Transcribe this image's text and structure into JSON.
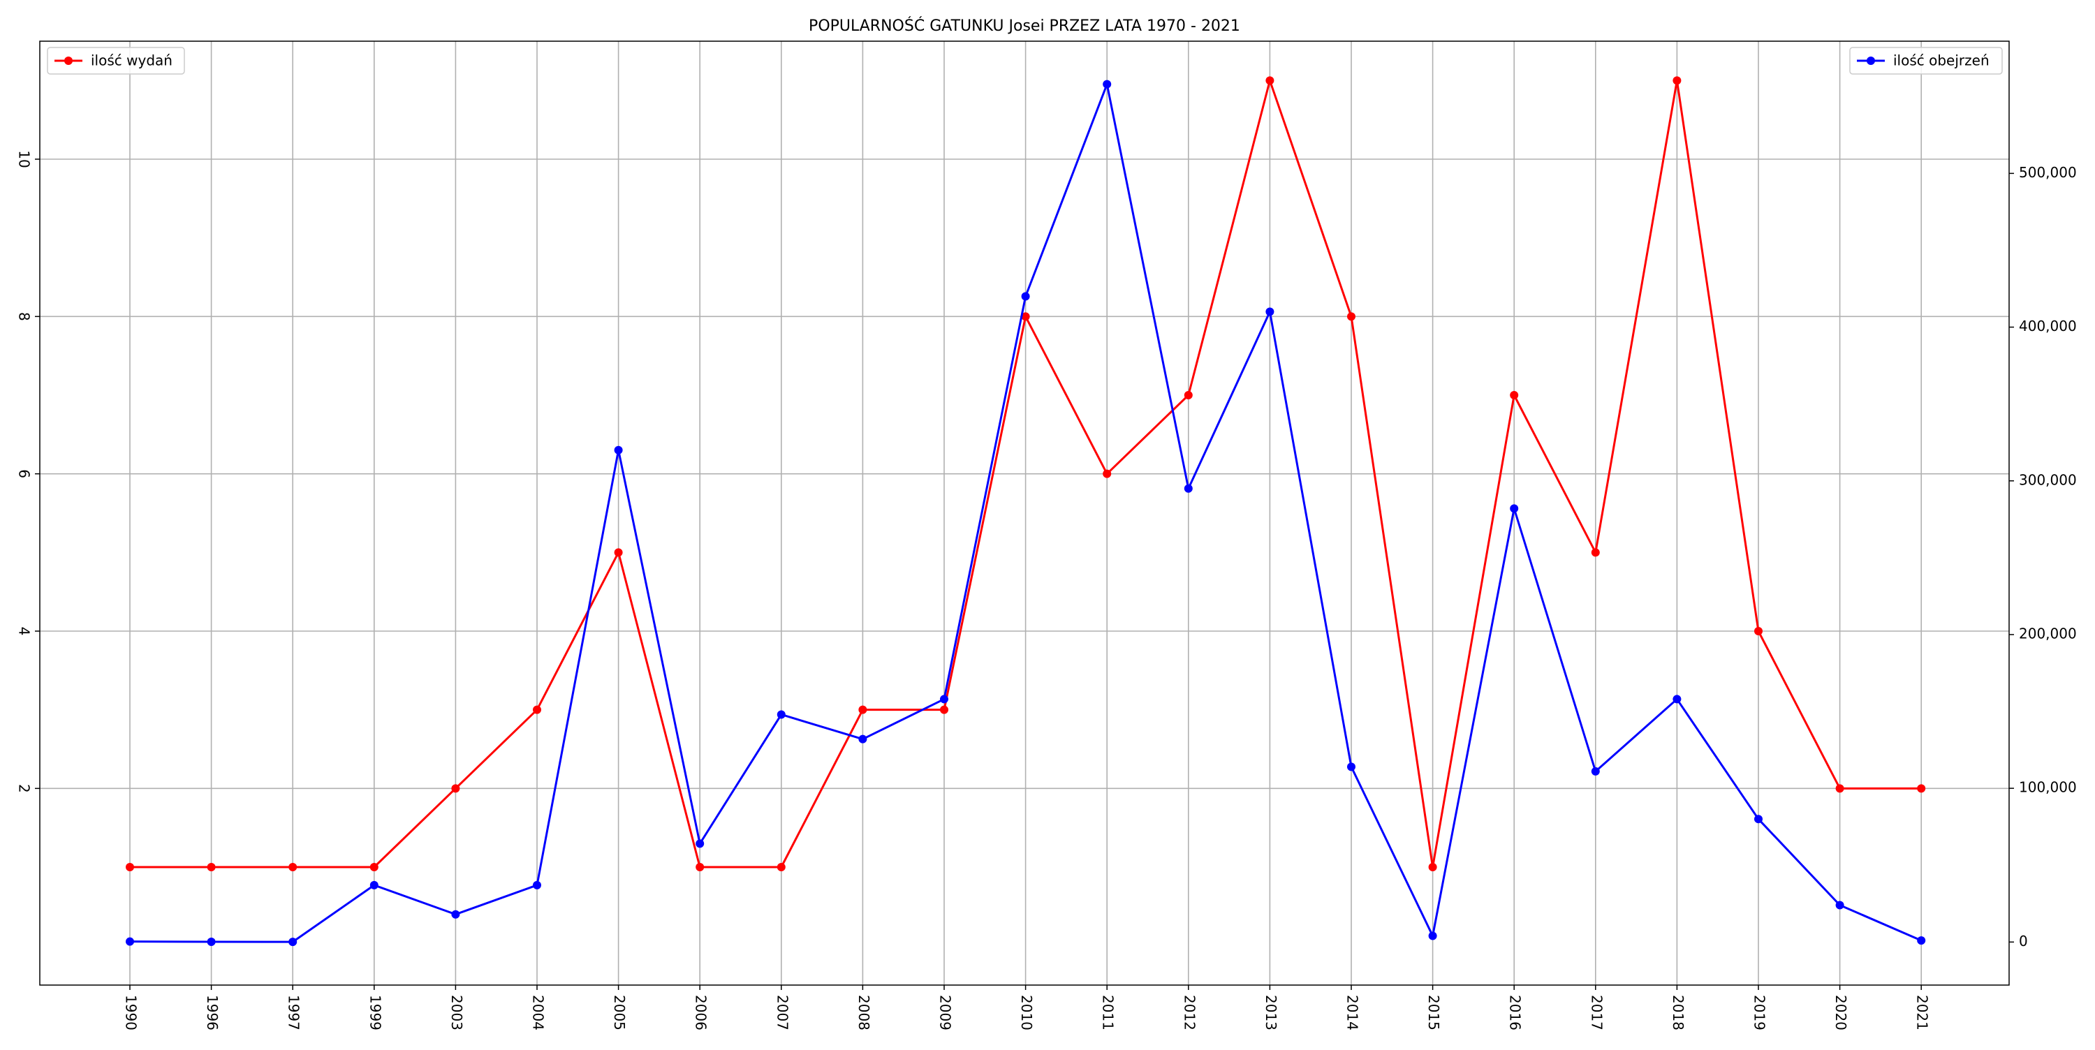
{
  "chart_data": {
    "type": "line",
    "title": "POPULARNOŚĆ GATUNKU Josei PRZEZ LATA 1970 - 2021",
    "categories": [
      "1990",
      "1996",
      "1997",
      "1999",
      "2003",
      "2004",
      "2005",
      "2006",
      "2007",
      "2008",
      "2009",
      "2010",
      "2011",
      "2012",
      "2013",
      "2014",
      "2015",
      "2016",
      "2017",
      "2018",
      "2019",
      "2020",
      "2021"
    ],
    "series": [
      {
        "name": "ilość wydań",
        "axis": "left",
        "color": "#ff0000",
        "values": [
          1,
          1,
          1,
          1,
          2,
          3,
          5,
          1,
          1,
          3,
          3,
          8,
          6,
          7,
          11,
          8,
          1,
          7,
          5,
          11,
          4,
          2,
          2
        ]
      },
      {
        "name": "ilość obejrzeń",
        "axis": "right",
        "color": "#0000ff",
        "values": [
          300,
          150,
          100,
          37000,
          18000,
          37000,
          320000,
          64000,
          148000,
          132000,
          158000,
          420000,
          558000,
          295000,
          410000,
          114000,
          4000,
          282000,
          111000,
          158000,
          80000,
          24000,
          1000
        ]
      }
    ],
    "y_left": {
      "ylim": [
        -0.5,
        11.5
      ],
      "ticks": [
        2,
        4,
        6,
        8,
        10
      ],
      "tick_labels": [
        "2",
        "4",
        "6",
        "8",
        "10"
      ]
    },
    "y_right": {
      "ylim": [
        -28000,
        586000
      ],
      "ticks": [
        0,
        100000,
        200000,
        300000,
        400000,
        500000
      ],
      "tick_labels": [
        "0",
        "100,000",
        "200,000",
        "300,000",
        "400,000",
        "500,000"
      ]
    },
    "grid": true,
    "legend_left_placement": "top-left",
    "legend_right_placement": "top-right"
  }
}
